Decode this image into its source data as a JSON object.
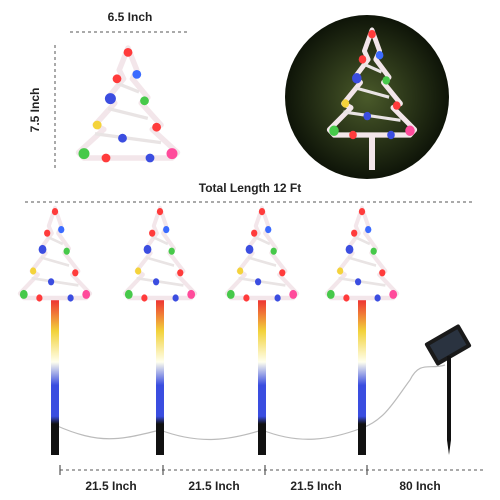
{
  "labels": {
    "width": "6.5 Inch",
    "height": "7.5 Inch",
    "total": "Total Length 12 Ft",
    "spacing": [
      "21.5 Inch",
      "21.5 Inch",
      "21.5 Inch",
      "80 Inch"
    ]
  }
}
